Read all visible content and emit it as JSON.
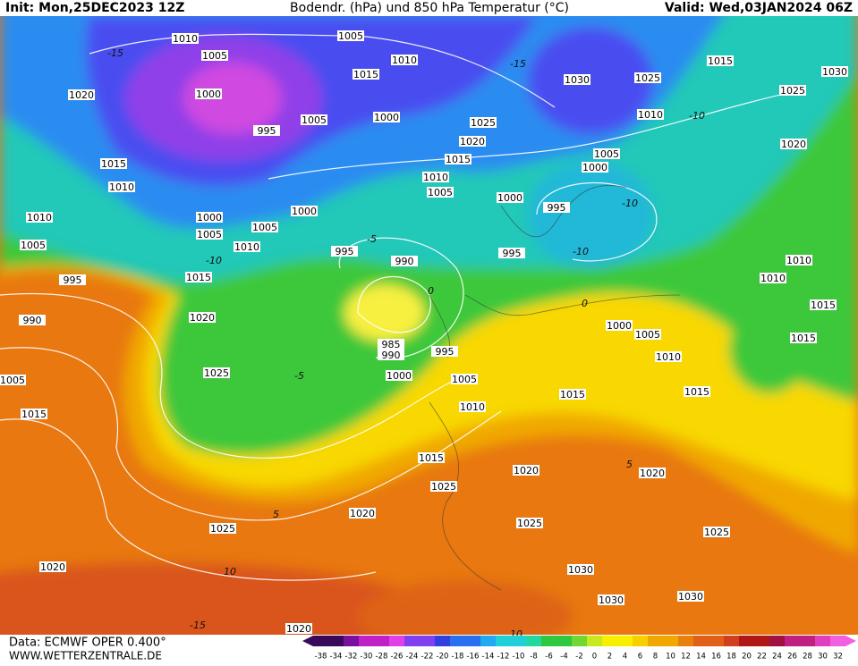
{
  "header": {
    "init": "Init: Mon,25DEC2023 12Z",
    "title": "Bodendr. (hPa) und 850 hPa Temperatur (°C)",
    "valid": "Valid: Wed,03JAN2024 06Z"
  },
  "footer": {
    "data": "Data: ECMWF OPER 0.400°",
    "url": "WWW.WETTERZENTRALE.DE"
  },
  "colorbar": {
    "labels": [
      -38,
      -34,
      -32,
      -30,
      -28,
      -26,
      -24,
      -22,
      -20,
      -18,
      -16,
      -14,
      -12,
      -10,
      -8,
      -6,
      -4,
      -2,
      0,
      2,
      4,
      6,
      8,
      10,
      12,
      14,
      16,
      18,
      20,
      22,
      24,
      26,
      28,
      30,
      32
    ]
  },
  "isobar_labels": [
    "1010",
    "1005",
    "1005",
    "1010",
    "1015",
    "1030",
    "1025",
    "1015",
    "1030",
    "1025",
    "1020",
    "1000",
    "1005",
    "1000",
    "995",
    "1025",
    "1010",
    "1020",
    "1020",
    "1015",
    "1015",
    "1005",
    "1000",
    "1010",
    "1010",
    "1005",
    "1000",
    "995",
    "1000",
    "1000",
    "1010",
    "1005",
    "1005",
    "1005",
    "1010",
    "995",
    "995",
    "990",
    "1010",
    "1010",
    "995",
    "1015",
    "1015",
    "990",
    "1020",
    "1000",
    "1005",
    "985",
    "990",
    "995",
    "1010",
    "1015",
    "1025",
    "1000",
    "1005",
    "1015",
    "1015",
    "1015",
    "1010",
    "1015",
    "1020",
    "1020",
    "1025",
    "1020",
    "1025",
    "1025",
    "1025",
    "1020",
    "1030",
    "1030",
    "1030",
    "1020",
    "1005"
  ],
  "temperature_labels": [
    "-15",
    "-10",
    "-10",
    "-15",
    "-10",
    "-5",
    "-10",
    "-5",
    "0",
    "0",
    "5",
    "5",
    "10",
    "10",
    "-15"
  ]
}
